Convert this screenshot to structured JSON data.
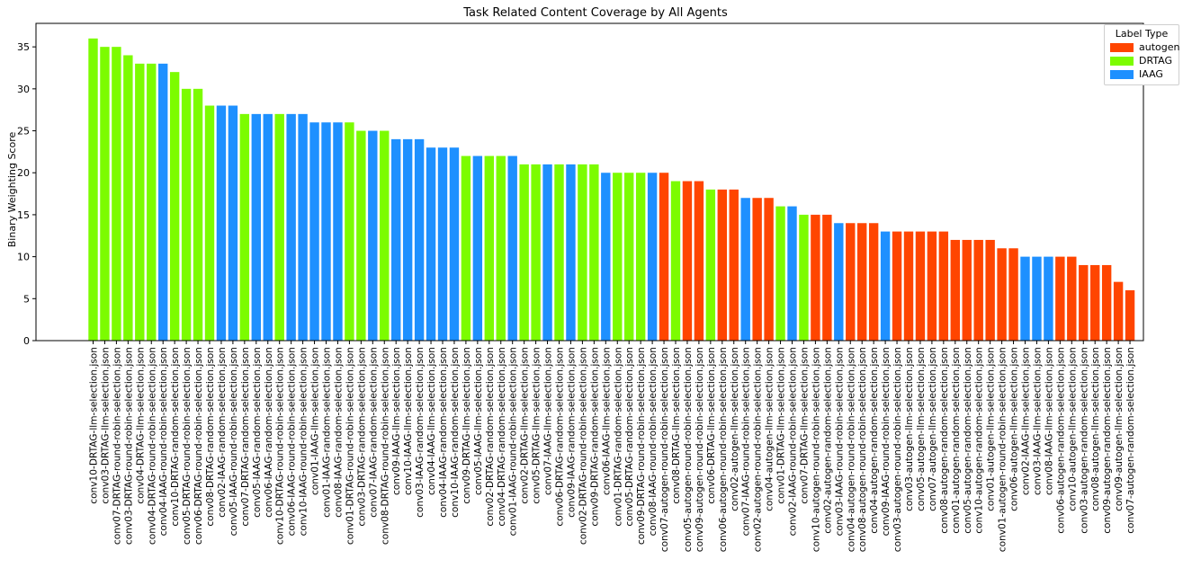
{
  "chart_data": {
    "type": "bar",
    "title": "Task Related Content Coverage by All Agents",
    "xlabel": "",
    "ylabel": "Binary Weighting Score",
    "ylim": [
      0,
      37.8
    ],
    "yticks": [
      0,
      5,
      10,
      15,
      20,
      25,
      30,
      35
    ],
    "grid": false,
    "legend": {
      "title": "Label Type",
      "placement": "top-right",
      "entries": [
        {
          "name": "autogen",
          "color": "#ff4500"
        },
        {
          "name": "DRTAG",
          "color": "#7cfc00"
        },
        {
          "name": "IAAG",
          "color": "#1e90ff"
        }
      ]
    },
    "colors": {
      "autogen": "#ff4500",
      "DRTAG": "#7cfc00",
      "IAAG": "#1e90ff"
    },
    "categories": [
      "conv10-DRTAG-llm-selection.json",
      "conv03-DRTAG-llm-selection.json",
      "conv07-DRTAG-round-robin-selection.json",
      "conv03-DRTAG-round-robin-selection.json",
      "conv04-DRTAG-llm-selection.json",
      "conv04-DRTAG-round-robin-selection.json",
      "conv04-IAAG-round-robin-selection.json",
      "conv10-DRTAG-random-selection.json",
      "conv05-DRTAG-round-robin-selection.json",
      "conv06-DRTAG-round-robin-selection.json",
      "conv08-DRTAG-random-selection.json",
      "conv02-IAAG-random-selection.json",
      "conv05-IAAG-round-robin-selection.json",
      "conv07-DRTAG-random-selection.json",
      "conv05-IAAG-random-selection.json",
      "conv06-IAAG-random-selection.json",
      "conv10-DRTAG-round-robin-selection.json",
      "conv06-IAAG-round-robin-selection.json",
      "conv10-IAAG-round-robin-selection.json",
      "conv01-IAAG-llm-selection.json",
      "conv01-IAAG-random-selection.json",
      "conv08-IAAG-random-selection.json",
      "conv01-DRTAG-round-robin-selection.json",
      "conv03-DRTAG-random-selection.json",
      "conv07-IAAG-random-selection.json",
      "conv08-DRTAG-round-robin-selection.json",
      "conv09-IAAG-llm-selection.json",
      "conv10-IAAG-llm-selection.json",
      "conv03-IAAG-random-selection.json",
      "conv04-IAAG-llm-selection.json",
      "conv04-IAAG-random-selection.json",
      "conv10-IAAG-random-selection.json",
      "conv09-DRTAG-llm-selection.json",
      "conv05-IAAG-llm-selection.json",
      "conv02-DRTAG-random-selection.json",
      "conv04-DRTAG-random-selection.json",
      "conv01-IAAG-round-robin-selection.json",
      "conv02-DRTAG-llm-selection.json",
      "conv05-DRTAG-llm-selection.json",
      "conv07-IAAG-llm-selection.json",
      "conv06-DRTAG-random-selection.json",
      "conv09-IAAG-random-selection.json",
      "conv02-DRTAG-round-robin-selection.json",
      "conv09-DRTAG-random-selection.json",
      "conv06-IAAG-llm-selection.json",
      "conv01-DRTAG-random-selection.json",
      "conv05-DRTAG-random-selection.json",
      "conv09-DRTAG-round-robin-selection.json",
      "conv08-IAAG-round-robin-selection.json",
      "conv07-autogen-round-robin-selection.json",
      "conv08-DRTAG-llm-selection.json",
      "conv05-autogen-round-robin-selection.json",
      "conv09-autogen-round-robin-selection.json",
      "conv06-DRTAG-llm-selection.json",
      "conv06-autogen-round-robin-selection.json",
      "conv02-autogen-llm-selection.json",
      "conv07-IAAG-round-robin-selection.json",
      "conv02-autogen-round-robin-selection.json",
      "conv04-autogen-llm-selection.json",
      "conv01-DRTAG-llm-selection.json",
      "conv02-IAAG-round-robin-selection.json",
      "conv07-DRTAG-llm-selection.json",
      "conv10-autogen-round-robin-selection.json",
      "conv02-autogen-random-selection.json",
      "conv03-IAAG-round-robin-selection.json",
      "conv04-autogen-round-robin-selection.json",
      "conv08-autogen-round-robin-selection.json",
      "conv04-autogen-random-selection.json",
      "conv09-IAAG-round-robin-selection.json",
      "conv03-autogen-round-robin-selection.json",
      "conv03-autogen-llm-selection.json",
      "conv05-autogen-llm-selection.json",
      "conv07-autogen-llm-selection.json",
      "conv08-autogen-random-selection.json",
      "conv01-autogen-random-selection.json",
      "conv05-autogen-random-selection.json",
      "conv10-autogen-random-selection.json",
      "conv01-autogen-llm-selection.json",
      "conv01-autogen-round-robin-selection.json",
      "conv06-autogen-llm-selection.json",
      "conv02-IAAG-llm-selection.json",
      "conv03-IAAG-llm-selection.json",
      "conv08-IAAG-llm-selection.json",
      "conv06-autogen-random-selection.json",
      "conv10-autogen-llm-selection.json",
      "conv03-autogen-random-selection.json",
      "conv08-autogen-llm-selection.json",
      "conv09-autogen-random-selection.json",
      "conv09-autogen-llm-selection.json",
      "conv07-autogen-random-selection.json"
    ],
    "values": [
      36,
      35,
      35,
      34,
      33,
      33,
      33,
      32,
      30,
      30,
      28,
      28,
      28,
      27,
      27,
      27,
      27,
      27,
      27,
      26,
      26,
      26,
      26,
      25,
      25,
      25,
      24,
      24,
      24,
      23,
      23,
      23,
      22,
      22,
      22,
      22,
      22,
      21,
      21,
      21,
      21,
      21,
      21,
      21,
      20,
      20,
      20,
      20,
      20,
      20,
      19,
      19,
      19,
      18,
      18,
      18,
      17,
      17,
      17,
      16,
      16,
      15,
      15,
      15,
      14,
      14,
      14,
      14,
      13,
      13,
      13,
      13,
      13,
      13,
      12,
      12,
      12,
      12,
      11,
      11,
      10,
      10,
      10,
      10,
      10,
      9,
      9,
      9,
      7,
      6
    ],
    "groups": [
      "DRTAG",
      "DRTAG",
      "DRTAG",
      "DRTAG",
      "DRTAG",
      "DRTAG",
      "IAAG",
      "DRTAG",
      "DRTAG",
      "DRTAG",
      "DRTAG",
      "IAAG",
      "IAAG",
      "DRTAG",
      "IAAG",
      "IAAG",
      "DRTAG",
      "IAAG",
      "IAAG",
      "IAAG",
      "IAAG",
      "IAAG",
      "DRTAG",
      "DRTAG",
      "IAAG",
      "DRTAG",
      "IAAG",
      "IAAG",
      "IAAG",
      "IAAG",
      "IAAG",
      "IAAG",
      "DRTAG",
      "IAAG",
      "DRTAG",
      "DRTAG",
      "IAAG",
      "DRTAG",
      "DRTAG",
      "IAAG",
      "DRTAG",
      "IAAG",
      "DRTAG",
      "DRTAG",
      "IAAG",
      "DRTAG",
      "DRTAG",
      "DRTAG",
      "IAAG",
      "autogen",
      "DRTAG",
      "autogen",
      "autogen",
      "DRTAG",
      "autogen",
      "autogen",
      "IAAG",
      "autogen",
      "autogen",
      "DRTAG",
      "IAAG",
      "DRTAG",
      "autogen",
      "autogen",
      "IAAG",
      "autogen",
      "autogen",
      "autogen",
      "IAAG",
      "autogen",
      "autogen",
      "autogen",
      "autogen",
      "autogen",
      "autogen",
      "autogen",
      "autogen",
      "autogen",
      "autogen",
      "autogen",
      "IAAG",
      "IAAG",
      "IAAG",
      "autogen",
      "autogen",
      "autogen",
      "autogen",
      "autogen",
      "autogen",
      "autogen"
    ]
  }
}
